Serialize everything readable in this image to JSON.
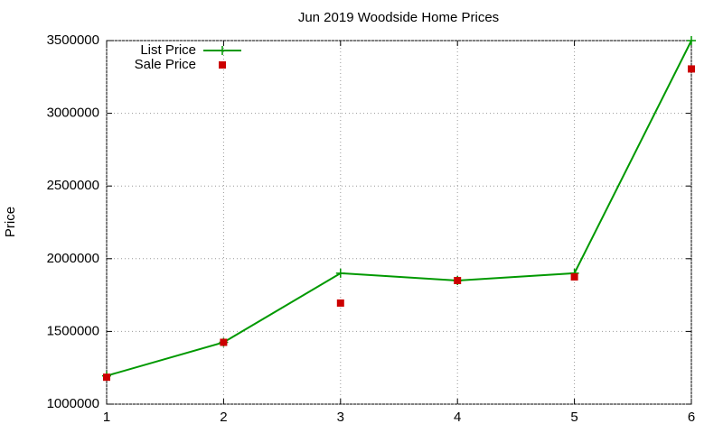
{
  "chart_data": {
    "type": "line",
    "title": "Jun 2019 Woodside Home Prices",
    "y_label": "Price",
    "x": [
      1,
      2,
      3,
      4,
      5,
      6
    ],
    "series": [
      {
        "name": "List Price",
        "color": "#009900",
        "style": "line",
        "values": [
          1195000,
          1425000,
          1900000,
          1850000,
          1900000,
          3500000
        ]
      },
      {
        "name": "Sale Price",
        "color": "#cc0000",
        "style": "points",
        "values": [
          1185000,
          1425000,
          1695000,
          1850000,
          1875000,
          3305000
        ]
      }
    ],
    "xlim": [
      1,
      6
    ],
    "xticks": [
      1,
      2,
      3,
      4,
      5,
      6
    ],
    "ylim": [
      1000000,
      3500000
    ],
    "yticks": [
      1000000,
      1500000,
      2000000,
      2500000,
      3000000,
      3500000
    ],
    "grid": true,
    "legend": "top-left"
  }
}
